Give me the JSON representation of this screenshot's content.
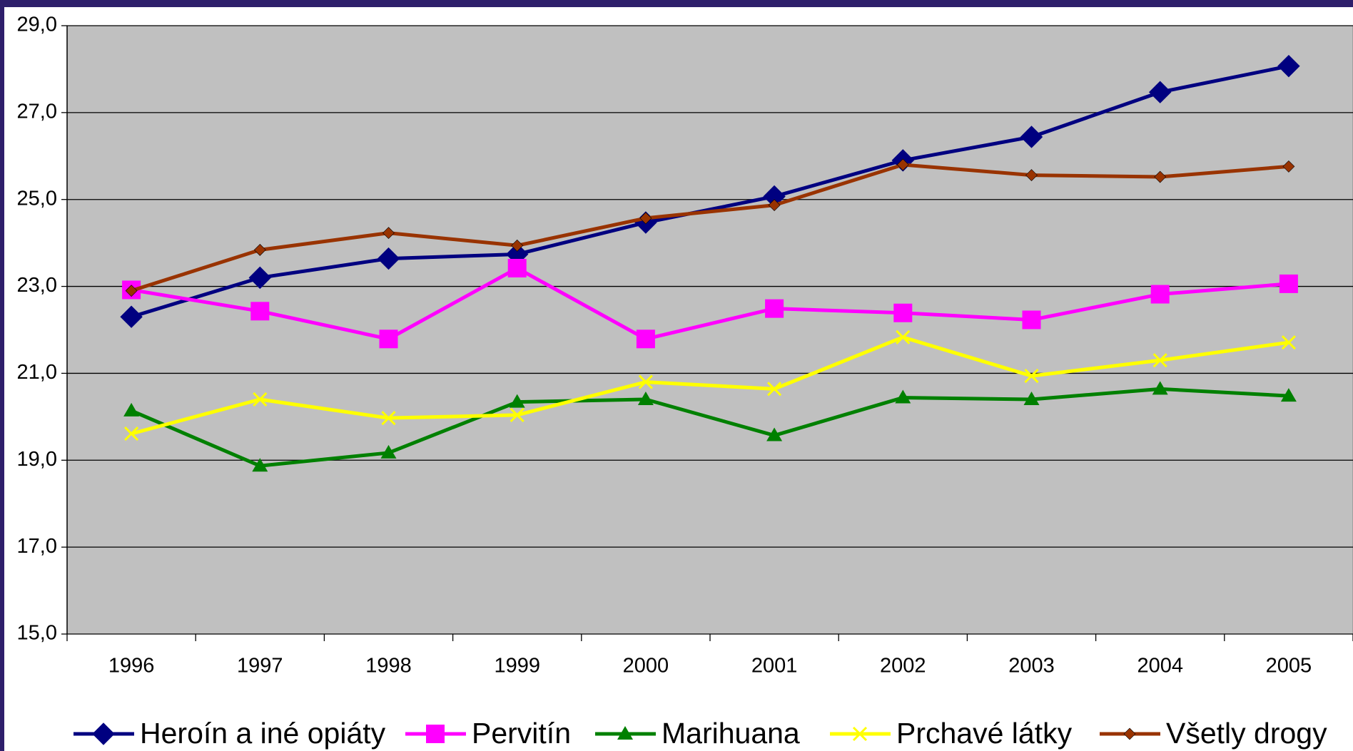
{
  "chart_data": {
    "type": "line",
    "categories": [
      "1996",
      "1997",
      "1998",
      "1999",
      "2000",
      "2001",
      "2002",
      "2003",
      "2004",
      "2005"
    ],
    "series": [
      {
        "name": "Heroín a iné opiáty",
        "color": "#000080",
        "marker": "diamond",
        "values": [
          22.3,
          23.2,
          23.64,
          23.74,
          24.47,
          25.07,
          25.9,
          26.44,
          27.47,
          28.07
        ]
      },
      {
        "name": "Pervitín",
        "color": "#ff00ff",
        "marker": "square",
        "values": [
          22.92,
          22.43,
          21.79,
          23.42,
          21.79,
          22.49,
          22.39,
          22.23,
          22.82,
          23.06
        ]
      },
      {
        "name": "Marihuana",
        "color": "#008000",
        "marker": "triangle",
        "values": [
          20.14,
          18.87,
          19.17,
          20.34,
          20.4,
          19.57,
          20.44,
          20.4,
          20.64,
          20.48
        ]
      },
      {
        "name": "Prchavé látky",
        "color": "#ffff00",
        "marker": "x",
        "values": [
          19.61,
          20.4,
          19.97,
          20.04,
          20.8,
          20.64,
          21.83,
          20.94,
          21.3,
          21.71
        ]
      },
      {
        "name": "Všetly drogy",
        "color": "#993300",
        "marker": "small-diamond",
        "values": [
          22.9,
          23.84,
          24.23,
          23.94,
          24.57,
          24.87,
          25.8,
          25.56,
          25.52,
          25.76
        ]
      }
    ],
    "ylim": [
      15,
      29
    ],
    "yticks": [
      {
        "value": 15,
        "label": "15,0"
      },
      {
        "value": 17,
        "label": "17,0"
      },
      {
        "value": 19,
        "label": "19,0"
      },
      {
        "value": 21,
        "label": "21,0"
      },
      {
        "value": 23,
        "label": "23,0"
      },
      {
        "value": 25,
        "label": "25,0"
      },
      {
        "value": 27,
        "label": "27,0"
      },
      {
        "value": 29,
        "label": "29,0"
      }
    ],
    "grid": true,
    "legend": "bottom"
  }
}
